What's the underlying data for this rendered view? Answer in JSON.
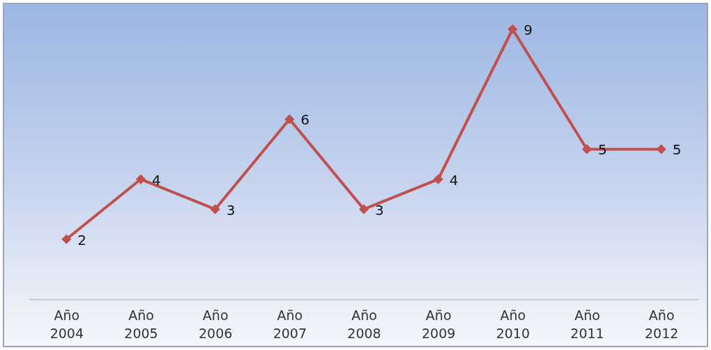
{
  "chart_data": {
    "type": "line",
    "categories": [
      "Año 2004",
      "Año 2005",
      "Año 2006",
      "Año 2007",
      "Año 2008",
      "Año 2009",
      "Año 2010",
      "Año 2011",
      "Año 2012"
    ],
    "values": [
      2,
      4,
      3,
      6,
      3,
      4,
      9,
      5,
      5
    ],
    "color": "#c0504d",
    "marker": "diamond",
    "data_labels": true,
    "tick_labels": "x"
  }
}
